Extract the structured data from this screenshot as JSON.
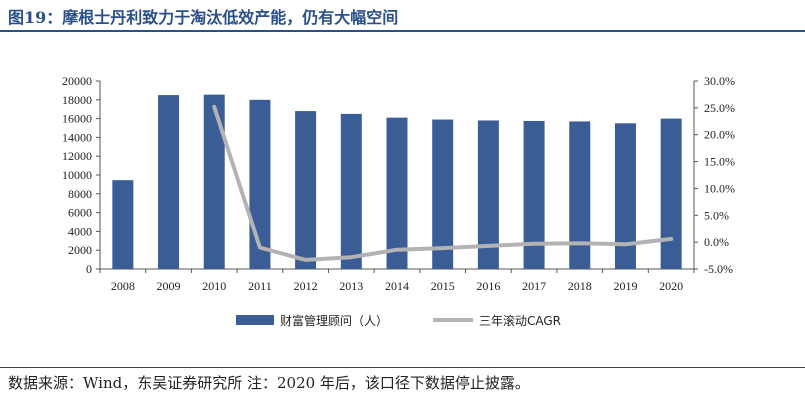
{
  "title": "图19：摩根士丹利致力于淘汰低效产能，仍有大幅空间",
  "source": "数据来源：Wind，东吴证券研究所  注：2020 年后，该口径下数据停止披露。",
  "chart_data": {
    "type": "bar+line",
    "categories": [
      "2008",
      "2009",
      "2010",
      "2011",
      "2012",
      "2013",
      "2014",
      "2015",
      "2016",
      "2017",
      "2018",
      "2019",
      "2020"
    ],
    "series": [
      {
        "name": "财富管理顾问（人）",
        "type": "bar",
        "axis": "left",
        "color": "#3a5d96",
        "values": [
          9450,
          18500,
          18550,
          18000,
          16800,
          16500,
          16100,
          15900,
          15800,
          15750,
          15700,
          15500,
          16000
        ]
      },
      {
        "name": "三年滚动CAGR",
        "type": "line",
        "axis": "right",
        "color": "#b3b3b3",
        "values": [
          null,
          null,
          25.2,
          -1.0,
          -3.3,
          -2.8,
          -1.4,
          -1.1,
          -0.7,
          -0.3,
          -0.2,
          -0.4,
          0.6
        ]
      }
    ],
    "y_left": {
      "min": 0,
      "max": 20000,
      "step": 2000,
      "ticks": [
        "0",
        "2000",
        "4000",
        "6000",
        "8000",
        "10000",
        "12000",
        "14000",
        "16000",
        "18000",
        "20000"
      ]
    },
    "y_right": {
      "min": -5,
      "max": 30,
      "step": 5,
      "ticks": [
        "-5.0%",
        "0.0%",
        "5.0%",
        "10.0%",
        "15.0%",
        "20.0%",
        "25.0%",
        "30.0%"
      ]
    },
    "legend_position": "bottom",
    "grid": false
  }
}
